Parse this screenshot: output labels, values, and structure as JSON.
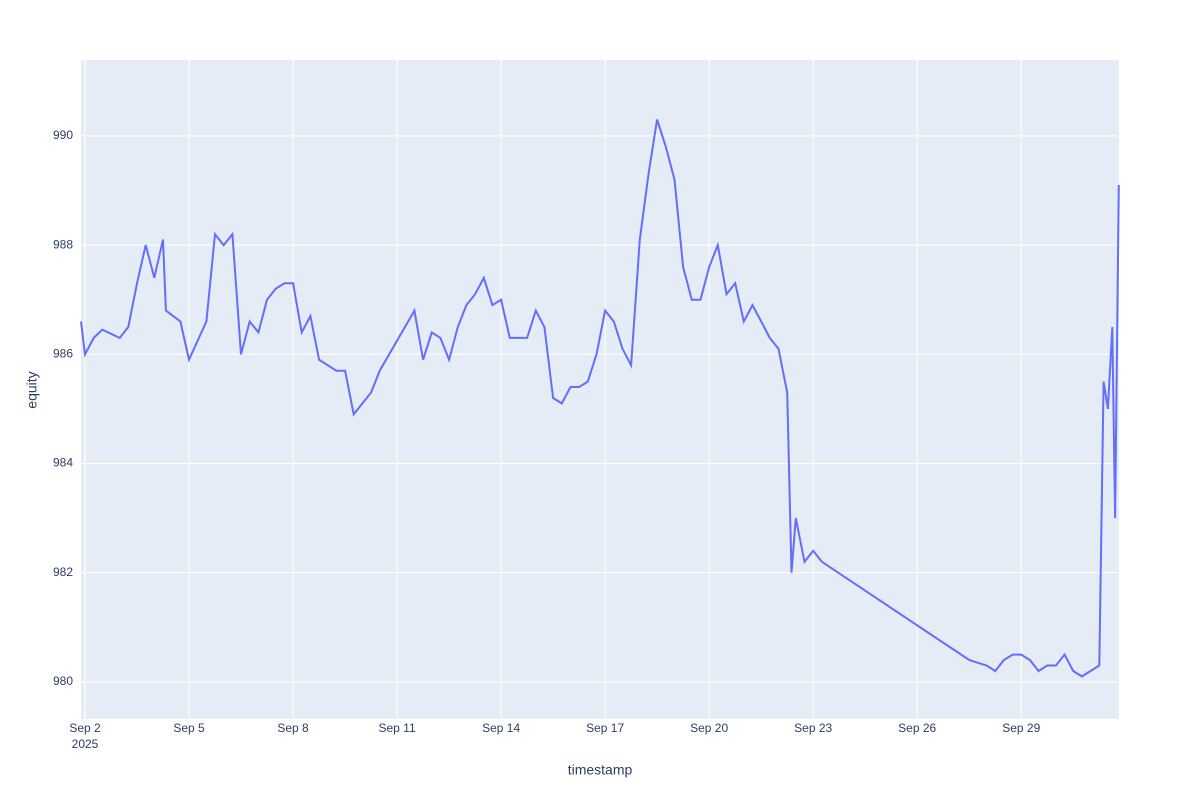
{
  "chart_data": {
    "type": "line",
    "x_label": "timestamp",
    "y_label": "equity",
    "x": [
      "2025-09-01T21:15",
      "2025-09-02T00:00",
      "2025-09-02T06:00",
      "2025-09-02T12:00",
      "2025-09-03T00:00",
      "2025-09-03T06:00",
      "2025-09-03T12:00",
      "2025-09-03T18:00",
      "2025-09-04T00:00",
      "2025-09-04T06:00",
      "2025-09-04T08:00",
      "2025-09-04T18:00",
      "2025-09-05T00:00",
      "2025-09-05T12:00",
      "2025-09-05T18:00",
      "2025-09-06T00:00",
      "2025-09-06T06:00",
      "2025-09-06T12:00",
      "2025-09-06T18:00",
      "2025-09-07T00:00",
      "2025-09-07T06:00",
      "2025-09-07T12:00",
      "2025-09-07T18:00",
      "2025-09-08T00:00",
      "2025-09-08T06:00",
      "2025-09-08T12:00",
      "2025-09-08T18:00",
      "2025-09-09T00:00",
      "2025-09-09T06:00",
      "2025-09-09T12:00",
      "2025-09-09T18:00",
      "2025-09-10T00:00",
      "2025-09-10T06:00",
      "2025-09-10T12:00",
      "2025-09-11T12:00",
      "2025-09-11T18:00",
      "2025-09-12T00:00",
      "2025-09-12T06:00",
      "2025-09-12T12:00",
      "2025-09-12T18:00",
      "2025-09-13T00:00",
      "2025-09-13T06:00",
      "2025-09-13T12:00",
      "2025-09-13T18:00",
      "2025-09-14T00:00",
      "2025-09-14T06:00",
      "2025-09-14T12:00",
      "2025-09-14T18:00",
      "2025-09-15T00:00",
      "2025-09-15T06:00",
      "2025-09-15T12:00",
      "2025-09-15T18:00",
      "2025-09-16T00:00",
      "2025-09-16T06:00",
      "2025-09-16T12:00",
      "2025-09-16T18:00",
      "2025-09-17T00:00",
      "2025-09-17T06:00",
      "2025-09-17T12:00",
      "2025-09-17T18:00",
      "2025-09-18T00:00",
      "2025-09-18T06:00",
      "2025-09-18T12:00",
      "2025-09-18T18:00",
      "2025-09-19T00:00",
      "2025-09-19T06:00",
      "2025-09-19T12:00",
      "2025-09-19T18:00",
      "2025-09-20T00:00",
      "2025-09-20T06:00",
      "2025-09-20T12:00",
      "2025-09-20T18:00",
      "2025-09-21T00:00",
      "2025-09-21T06:00",
      "2025-09-21T12:00",
      "2025-09-21T18:00",
      "2025-09-22T00:00",
      "2025-09-22T06:00",
      "2025-09-22T09:00",
      "2025-09-22T12:00",
      "2025-09-22T18:00",
      "2025-09-23T00:00",
      "2025-09-23T06:00",
      "2025-09-27T12:00",
      "2025-09-27T18:00",
      "2025-09-28T00:00",
      "2025-09-28T06:00",
      "2025-09-28T12:00",
      "2025-09-28T18:00",
      "2025-09-29T00:00",
      "2025-09-29T06:00",
      "2025-09-29T12:00",
      "2025-09-29T18:00",
      "2025-09-30T00:00",
      "2025-09-30T06:00",
      "2025-09-30T12:00",
      "2025-09-30T18:00",
      "2025-10-01T00:00",
      "2025-10-01T06:00",
      "2025-10-01T09:00",
      "2025-10-01T12:00",
      "2025-10-01T15:00",
      "2025-10-01T17:00",
      "2025-10-01T19:30"
    ],
    "series": [
      {
        "name": "equity",
        "color": "#636efa",
        "values": [
          986.6,
          986.0,
          986.3,
          986.45,
          986.3,
          986.5,
          987.3,
          988.0,
          987.4,
          988.1,
          986.8,
          986.6,
          985.9,
          986.6,
          988.2,
          988.0,
          988.2,
          986.0,
          986.6,
          986.4,
          987.0,
          987.2,
          987.3,
          987.3,
          986.4,
          986.7,
          985.9,
          985.8,
          985.7,
          985.7,
          984.9,
          985.1,
          985.3,
          985.7,
          986.8,
          985.9,
          986.4,
          986.3,
          985.9,
          986.5,
          986.9,
          987.1,
          987.4,
          986.9,
          987.0,
          986.3,
          986.3,
          986.3,
          986.8,
          986.5,
          985.2,
          985.1,
          985.4,
          985.4,
          985.5,
          986.0,
          986.8,
          986.6,
          986.1,
          985.8,
          988.1,
          989.3,
          990.3,
          989.8,
          989.2,
          987.6,
          987.0,
          987.0,
          987.6,
          988.0,
          987.1,
          987.3,
          986.6,
          986.9,
          986.6,
          986.3,
          986.1,
          985.3,
          982.0,
          983.0,
          982.2,
          982.4,
          982.2,
          980.4,
          980.35,
          980.3,
          980.2,
          980.4,
          980.5,
          980.5,
          980.4,
          980.2,
          980.3,
          980.3,
          980.5,
          980.2,
          980.1,
          980.2,
          980.3,
          985.5,
          985.0,
          986.5,
          983.0,
          989.1
        ]
      }
    ],
    "xlim": [
      "2025-09-01T21:14",
      "2025-10-01T19:40"
    ],
    "xticks": [
      {
        "value": "2025-09-02",
        "label": "Sep 2"
      },
      {
        "value": "2025-09-05",
        "label": "Sep 5"
      },
      {
        "value": "2025-09-08",
        "label": "Sep 8"
      },
      {
        "value": "2025-09-11",
        "label": "Sep 11"
      },
      {
        "value": "2025-09-14",
        "label": "Sep 14"
      },
      {
        "value": "2025-09-17",
        "label": "Sep 17"
      },
      {
        "value": "2025-09-20",
        "label": "Sep 20"
      },
      {
        "value": "2025-09-23",
        "label": "Sep 23"
      },
      {
        "value": "2025-09-26",
        "label": "Sep 26"
      },
      {
        "value": "2025-09-29",
        "label": "Sep 29"
      }
    ],
    "xtick_year": "2025",
    "ylim": [
      979.32,
      991.39
    ],
    "yticks": [
      980,
      982,
      984,
      986,
      988,
      990
    ],
    "grid": true
  }
}
